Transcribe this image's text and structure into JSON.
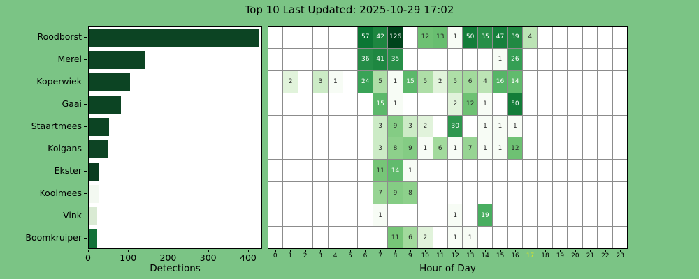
{
  "title": "Top 10 Last Updated: 2025-10-29 17:02",
  "colors": {
    "figure_background": "#7bc485",
    "axes_background": "#ffffff",
    "grid_line": "#8c8c8c",
    "spine": "#000000",
    "current_hour_highlight": "#dce422",
    "annotation_dark_text": "#262626",
    "annotation_light_text": "#ffffff"
  },
  "chart_data": [
    {
      "type": "bar",
      "orientation": "horizontal",
      "xlabel": "Detections",
      "xticks": [
        0,
        100,
        200,
        300,
        400
      ],
      "xlim": [
        0,
        435
      ],
      "categories": [
        "Roodborst",
        "Merel",
        "Koperwiek",
        "Gaai",
        "Staartmees",
        "Kolgans",
        "Ekster",
        "Koolmees",
        "Vink",
        "Boomkruiper"
      ],
      "values": [
        426,
        139,
        103,
        81,
        50,
        49,
        26,
        24,
        21,
        21
      ],
      "bar_colors": [
        "#0c4423",
        "#0c4423",
        "#0c4423",
        "#0c4423",
        "#0c4423",
        "#0d4424",
        "#093c1f",
        "#f3f9f1",
        "#d9ead3",
        "#137239"
      ]
    },
    {
      "type": "heatmap",
      "xlabel": "Hour of Day",
      "x": [
        0,
        1,
        2,
        3,
        4,
        5,
        6,
        7,
        8,
        9,
        10,
        11,
        12,
        13,
        14,
        15,
        16,
        17,
        18,
        19,
        20,
        21,
        22,
        23
      ],
      "current_hour": 17,
      "rows": [
        "Roodborst",
        "Merel",
        "Koperwiek",
        "Gaai",
        "Staartmees",
        "Kolgans",
        "Ekster",
        "Koolmees",
        "Vink",
        "Boomkruiper"
      ],
      "values": [
        [
          null,
          null,
          null,
          null,
          null,
          null,
          57,
          42,
          126,
          null,
          12,
          13,
          1,
          50,
          35,
          47,
          39,
          4,
          null,
          null,
          null,
          null,
          null,
          null
        ],
        [
          null,
          null,
          null,
          null,
          null,
          null,
          36,
          41,
          35,
          null,
          null,
          null,
          null,
          null,
          null,
          1,
          26,
          null,
          null,
          null,
          null,
          null,
          null,
          null
        ],
        [
          null,
          2,
          null,
          3,
          1,
          null,
          24,
          5,
          1,
          15,
          5,
          2,
          5,
          6,
          4,
          16,
          14,
          null,
          null,
          null,
          null,
          null,
          null,
          null
        ],
        [
          null,
          null,
          null,
          null,
          null,
          null,
          null,
          15,
          1,
          null,
          null,
          null,
          2,
          12,
          1,
          null,
          50,
          null,
          null,
          null,
          null,
          null,
          null,
          null
        ],
        [
          null,
          null,
          null,
          null,
          null,
          null,
          null,
          3,
          9,
          3,
          2,
          null,
          30,
          null,
          1,
          1,
          1,
          null,
          null,
          null,
          null,
          null,
          null,
          null
        ],
        [
          null,
          null,
          null,
          null,
          null,
          null,
          null,
          3,
          8,
          9,
          1,
          6,
          1,
          7,
          1,
          1,
          12,
          null,
          null,
          null,
          null,
          null,
          null,
          null
        ],
        [
          null,
          null,
          null,
          null,
          null,
          null,
          null,
          11,
          14,
          1,
          null,
          null,
          null,
          null,
          null,
          null,
          null,
          null,
          null,
          null,
          null,
          null,
          null,
          null
        ],
        [
          null,
          null,
          null,
          null,
          null,
          null,
          null,
          7,
          9,
          8,
          null,
          null,
          null,
          null,
          null,
          null,
          null,
          null,
          null,
          null,
          null,
          null,
          null,
          null
        ],
        [
          null,
          null,
          null,
          null,
          null,
          null,
          null,
          1,
          null,
          null,
          null,
          null,
          1,
          null,
          19,
          null,
          null,
          null,
          null,
          null,
          null,
          null,
          null,
          null
        ],
        [
          null,
          null,
          null,
          null,
          null,
          null,
          null,
          null,
          11,
          6,
          2,
          null,
          1,
          1,
          null,
          null,
          null,
          null,
          null,
          null,
          null,
          null,
          null,
          null
        ]
      ],
      "colormap": "Greens",
      "norm": "log",
      "vmin": 1,
      "vmax": 126,
      "empty_cell_color": "#ffffff",
      "legend": "none"
    }
  ]
}
